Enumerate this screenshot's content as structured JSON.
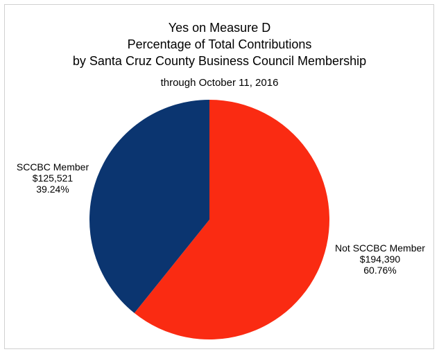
{
  "chart_data": {
    "type": "pie",
    "title": [
      "Yes on Measure D",
      "Percentage of Total Contributions",
      "by Santa Cruz County Business Council Membership"
    ],
    "subtitle": "through October 11, 2016",
    "slices": [
      {
        "label": "Not SCCBC Member",
        "value": 194390,
        "value_label": "$194,390",
        "percent": 60.76,
        "percent_label": "60.76%",
        "color": "#fa2b12"
      },
      {
        "label": "SCCBC Member",
        "value": 125521,
        "value_label": "$125,521",
        "percent": 39.24,
        "percent_label": "39.24%",
        "color": "#0b3570"
      }
    ],
    "start_angle": "top",
    "direction": "clockwise"
  }
}
